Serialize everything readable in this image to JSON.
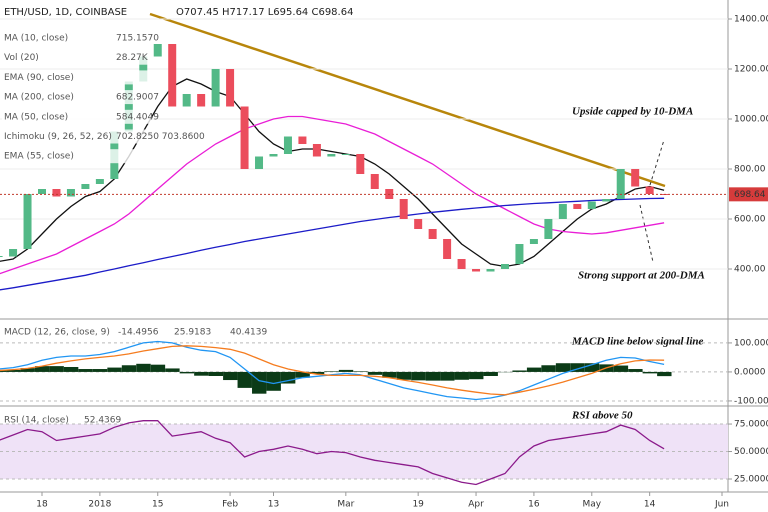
{
  "chart_data": [
    {
      "type": "candlestick",
      "title": "ETH/USD, 1D, COINBASE",
      "ohlc": "O707.45 H717.17 L695.64 C698.64",
      "categories": [
        null,
        null,
        null,
        "18",
        null,
        null,
        null,
        "2018",
        null,
        null,
        null,
        "15",
        null,
        null,
        null,
        null,
        "Feb",
        null,
        null,
        "13",
        null,
        null,
        null,
        null,
        "Mar",
        null,
        null,
        null,
        null,
        "19",
        null,
        null,
        null,
        "Apr",
        null,
        null,
        null,
        "16",
        null,
        null,
        null,
        "May",
        null,
        null,
        null,
        "14",
        null,
        null,
        null,
        null,
        "Jun"
      ],
      "values": [
        450,
        480,
        700,
        720,
        690,
        720,
        740,
        760,
        950,
        1150,
        1250,
        1300,
        1050,
        1100,
        1050,
        1200,
        1050,
        800,
        850,
        860,
        930,
        900,
        850,
        860,
        860,
        780,
        720,
        680,
        600,
        560,
        520,
        440,
        400,
        390,
        400,
        420,
        500,
        520,
        600,
        660,
        640,
        670,
        680,
        800,
        730,
        700,
        698.64,
        null,
        null,
        null,
        null
      ],
      "up_color": "#53b987",
      "down_color": "#eb4d5c",
      "series": [
        {
          "name": "MA (10, close)",
          "readout": "715.1570",
          "color": "#111111",
          "values": [
            430,
            440,
            480,
            540,
            600,
            650,
            690,
            710,
            760,
            850,
            950,
            1050,
            1130,
            1160,
            1140,
            1110,
            1090,
            1020,
            950,
            900,
            870,
            880,
            880,
            870,
            860,
            850,
            820,
            780,
            730,
            680,
            620,
            560,
            500,
            460,
            420,
            410,
            420,
            450,
            500,
            550,
            600,
            640,
            660,
            690,
            720,
            730,
            715,
            null,
            null,
            null,
            null
          ]
        },
        {
          "name": "MA (50, close)",
          "readout": "584.4049",
          "color": "#e91ed6",
          "values": [
            380,
            400,
            420,
            440,
            460,
            490,
            520,
            550,
            580,
            620,
            670,
            720,
            770,
            820,
            860,
            900,
            930,
            960,
            980,
            1000,
            1010,
            1010,
            1000,
            990,
            980,
            960,
            940,
            910,
            880,
            850,
            820,
            780,
            740,
            700,
            670,
            640,
            610,
            580,
            560,
            550,
            545,
            540,
            545,
            555,
            565,
            575,
            585,
            null,
            null,
            null,
            null
          ]
        },
        {
          "name": "MA (200, close)",
          "readout": "682.9007",
          "color": "#1c1cc8",
          "values": [
            316,
            325,
            335,
            345,
            355,
            365,
            375,
            388,
            400,
            413,
            425,
            438,
            450,
            462,
            475,
            487,
            498,
            510,
            520,
            530,
            540,
            550,
            560,
            570,
            580,
            590,
            598,
            606,
            613,
            620,
            627,
            633,
            639,
            644,
            649,
            654,
            658,
            662,
            665,
            668,
            671,
            674,
            676,
            678,
            680,
            682,
            683,
            null,
            null,
            null,
            null
          ]
        }
      ],
      "other_indicators": [
        {
          "name": "Vol (20)",
          "readout": "28.27K"
        },
        {
          "name": "EMA (90, close)",
          "readout": ""
        },
        {
          "name": "Ichimoku (9, 26, 52, 26)",
          "readout": "702.8250 703.8600"
        },
        {
          "name": "EMA (55, close)",
          "readout": ""
        }
      ],
      "last_price": 698.64,
      "ylim": [
        204,
        1476
      ],
      "yticks": [
        {
          "value": 1400,
          "label": "1400.00"
        },
        {
          "value": 1200,
          "label": "1200.00"
        },
        {
          "value": 1000,
          "label": "1000.00"
        },
        {
          "value": 800,
          "label": "800.00"
        },
        {
          "value": 600,
          "label": "600.00"
        },
        {
          "value": 400,
          "label": "400.00"
        }
      ],
      "annotations": [
        "Upside capped by 10-DMA",
        "Strong support at 200-DMA"
      ]
    },
    {
      "type": "macd",
      "title": "MACD (12, 26, close, 9)",
      "series": [
        {
          "readout": "-14.4956",
          "color": "#0b3b17",
          "values": [
            5,
            7,
            13,
            20,
            20,
            17,
            10,
            10,
            15,
            23,
            28,
            25,
            12,
            -5,
            -13,
            -14,
            -28,
            -55,
            -75,
            -65,
            -40,
            -20,
            -7,
            2,
            7,
            2,
            -10,
            -20,
            -27,
            -29,
            -30,
            -30,
            -27,
            -25,
            -14,
            -1,
            5,
            15,
            23,
            30,
            30,
            30,
            26,
            22,
            10,
            -5,
            -14.4956,
            null,
            null,
            null,
            null
          ]
        },
        {
          "readout": "25.9183",
          "color": "#2196f3",
          "values": [
            10,
            15,
            25,
            40,
            50,
            55,
            55,
            60,
            70,
            85,
            100,
            105,
            100,
            85,
            75,
            70,
            50,
            10,
            -30,
            -40,
            -30,
            -20,
            -15,
            -10,
            -5,
            -10,
            -25,
            -40,
            -55,
            -65,
            -75,
            -85,
            -90,
            -95,
            -90,
            -80,
            -65,
            -45,
            -25,
            -5,
            10,
            25,
            40,
            50,
            48,
            36,
            25.9183,
            null,
            null,
            null,
            null
          ]
        },
        {
          "readout": "40.4139",
          "color": "#f57c1f",
          "values": [
            5,
            8,
            12,
            20,
            30,
            38,
            45,
            50,
            55,
            62,
            72,
            80,
            88,
            90,
            88,
            84,
            78,
            65,
            45,
            25,
            10,
            0,
            -8,
            -12,
            -12,
            -12,
            -15,
            -20,
            -28,
            -36,
            -45,
            -55,
            -63,
            -70,
            -76,
            -79,
            -70,
            -60,
            -48,
            -35,
            -20,
            -5,
            14,
            28,
            38,
            41,
            40.4139,
            null,
            null,
            null,
            null
          ]
        }
      ],
      "ylim": [
        -114,
        179
      ],
      "yticks": [
        {
          "value": 100,
          "label": "100.0000"
        },
        {
          "value": 0,
          "label": "0.0000"
        },
        {
          "value": -100,
          "label": "-100.0000"
        }
      ],
      "annotations": [
        "MACD line below signal line"
      ]
    },
    {
      "type": "line",
      "title": "RSI (14, close)",
      "series": [
        {
          "readout": "52.4369",
          "color": "#8b1a8b",
          "values": [
            60,
            65,
            70,
            68,
            60,
            62,
            64,
            66,
            72,
            76,
            78,
            78,
            64,
            66,
            68,
            62,
            58,
            45,
            50,
            52,
            55,
            52,
            48,
            50,
            49,
            45,
            42,
            40,
            38,
            36,
            30,
            26,
            22,
            20,
            25,
            30,
            45,
            55,
            60,
            62,
            64,
            66,
            68,
            74,
            70,
            60,
            52.4369,
            null,
            null,
            null,
            null
          ]
        }
      ],
      "ylim": [
        15,
        90.5
      ],
      "yticks": [
        {
          "value": 75,
          "label": "75.0000"
        },
        {
          "value": 50,
          "label": "50.0000"
        },
        {
          "value": 25,
          "label": "25.0000"
        }
      ],
      "annotations": [
        "RSI above 50"
      ]
    }
  ]
}
